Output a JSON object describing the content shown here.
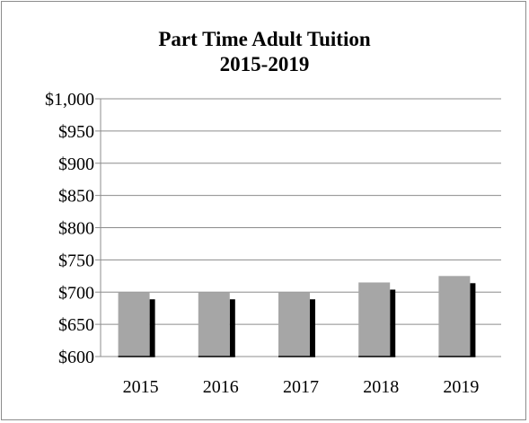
{
  "chart_data": {
    "type": "bar",
    "title": "Part Time Adult Tuition",
    "subtitle": "2015-2019",
    "categories": [
      "2015",
      "2016",
      "2017",
      "2018",
      "2019"
    ],
    "values": [
      700,
      700,
      700,
      715,
      725
    ],
    "ylim": [
      600,
      1000
    ],
    "ytick_labels": [
      "$600",
      "$650",
      "$700",
      "$750",
      "$800",
      "$850",
      "$900",
      "$950",
      "$1,000"
    ],
    "grid": true,
    "legend": "none",
    "bar_color": "#a6a6a6",
    "shadow_color": "#000000"
  }
}
